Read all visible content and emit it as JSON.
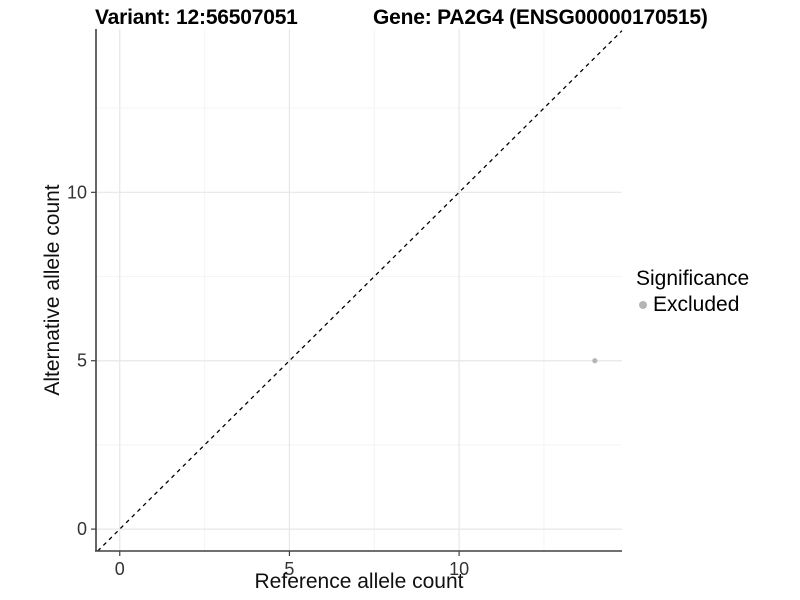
{
  "chart_data": {
    "type": "scatter",
    "titles": [
      {
        "text": "Variant: 12:56507051"
      },
      {
        "text": "Gene: PA2G4 (ENSG00000170515)"
      }
    ],
    "xlabel": "Reference allele count",
    "ylabel": "Alternative allele count",
    "xlim": [
      -0.7,
      14.8
    ],
    "ylim": [
      -0.65,
      14.85
    ],
    "xticks": [
      0,
      5,
      10
    ],
    "yticks": [
      0,
      5,
      10
    ],
    "minor_xticks": [
      2.5,
      7.5,
      12.5
    ],
    "minor_yticks": [
      2.5,
      7.5,
      12.5
    ],
    "grid": true,
    "points": [
      {
        "x": 14,
        "y": 5,
        "series": "Excluded"
      }
    ],
    "identity_line": {
      "equation": "y = x",
      "style": "dashed",
      "color": "#000000"
    },
    "legend": {
      "title": "Significance",
      "position": "right",
      "items": [
        {
          "label": "Excluded",
          "color": "#b5b5b5"
        }
      ]
    }
  },
  "colors": {
    "background": "#ffffff",
    "axis_line": "#404040",
    "tick_text": "#333333",
    "grid_major": "#e7e7e7",
    "grid_minor": "#f4f4f4"
  }
}
